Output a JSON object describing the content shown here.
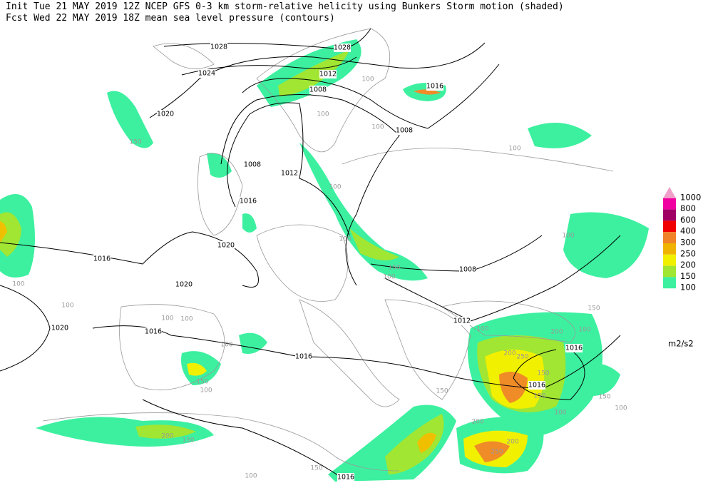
{
  "header": {
    "line1": "Init  Tue 21 MAY 2019 12Z  NCEP GFS 0-3 km storm-relative helicity using Bunkers Storm motion (shaded)",
    "line2": "Fcst Wed 22 MAY 2019 18Z  mean sea level pressure (contours)"
  },
  "legend": {
    "levels": [
      {
        "label": "1000",
        "color": "#f0a0c8"
      },
      {
        "label": "800",
        "color": "#f000a0"
      },
      {
        "label": "600",
        "color": "#a00064"
      },
      {
        "label": "400",
        "color": "#f00000"
      },
      {
        "label": "300",
        "color": "#f08228"
      },
      {
        "label": "250",
        "color": "#f0b400"
      },
      {
        "label": "200",
        "color": "#f0f000"
      },
      {
        "label": "150",
        "color": "#a0e632"
      },
      {
        "label": "100",
        "color": "#3cf0a0"
      }
    ],
    "unit": "m2/s2"
  },
  "pressure_labels": [
    "1028",
    "1024",
    "1020",
    "1028",
    "1012",
    "1008",
    "1016",
    "1008",
    "1008",
    "1012",
    "1016",
    "1020",
    "1016",
    "1020",
    "1008",
    "1012",
    "1020",
    "1016",
    "1016",
    "1016",
    "1016",
    "1016"
  ],
  "helicity_labels": [
    "100",
    "100",
    "150",
    "100",
    "100",
    "100",
    "100",
    "100",
    "150",
    "100",
    "100",
    "100",
    "100",
    "100",
    "150",
    "100",
    "200",
    "100",
    "100",
    "200",
    "250",
    "150",
    "150",
    "100",
    "150",
    "150",
    "150",
    "100",
    "100",
    "200",
    "200",
    "150",
    "200",
    "250",
    "100",
    "150"
  ]
}
